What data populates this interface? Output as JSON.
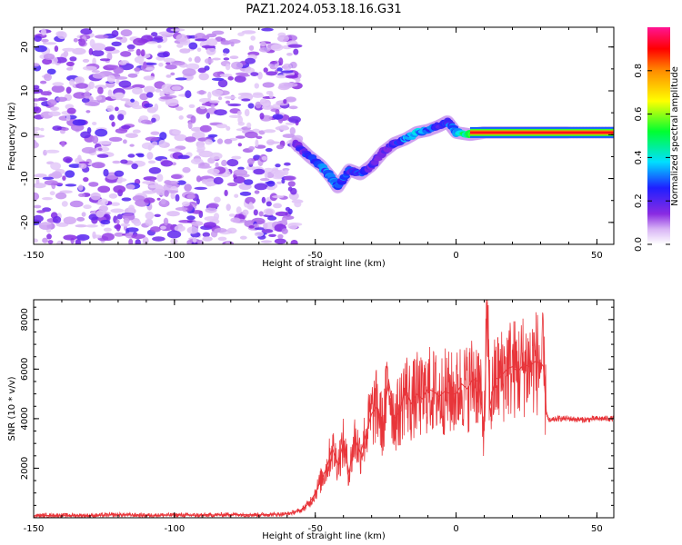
{
  "figure": {
    "title": "PAZ1.2024.053.18.16.G31"
  },
  "chart_data": [
    {
      "type": "heatmap",
      "title": "PAZ1.2024.053.18.16.G31",
      "xlabel": "Height of straight line (km)",
      "ylabel": "Frequency (Hz)",
      "xlim": [
        -150,
        56
      ],
      "ylim": [
        -25,
        24.5
      ],
      "x_ticks": [
        -150,
        -100,
        -50,
        0,
        50
      ],
      "y_ticks": [
        -20,
        -10,
        0,
        10,
        20
      ],
      "grid": false,
      "colorscale": "rainbow (white to violet, blue, cyan, green, yellow, orange, red, magenta)",
      "colorbar": {
        "label": "Normalized spectral amplitude",
        "range": [
          0,
          1
        ],
        "ticks": [
          0.0,
          0.2,
          0.4,
          0.6,
          0.8
        ]
      },
      "noise_region": {
        "x_range": [
          -150,
          -56
        ],
        "y_range": [
          -25,
          24
        ],
        "level": "low (0.05-0.25)"
      },
      "signal_track": {
        "x": [
          -57,
          -52,
          -48,
          -44,
          -42,
          -38,
          -34,
          -30,
          -26,
          -22,
          -18,
          -14,
          -10,
          -6,
          -3,
          0,
          5,
          10,
          20,
          30,
          40,
          56
        ],
        "frequency": [
          -2,
          -5,
          -7,
          -10,
          -12,
          -8,
          -9,
          -7,
          -4,
          -2,
          -1,
          0.5,
          1,
          2,
          3,
          0.5,
          0,
          0.5,
          0.5,
          0.5,
          0.5,
          0.5
        ],
        "amplitude": [
          0.2,
          0.35,
          0.4,
          0.45,
          0.45,
          0.35,
          0.35,
          0.3,
          0.2,
          0.3,
          0.45,
          0.5,
          0.4,
          0.35,
          0.35,
          0.5,
          0.75,
          0.75,
          0.8,
          0.85,
          0.9,
          0.9
        ]
      }
    },
    {
      "type": "line",
      "xlabel": "Height of straight line (km)",
      "ylabel": "SNR (10 * v/v)",
      "xlim": [
        -150,
        56
      ],
      "ylim": [
        0,
        8800
      ],
      "x_ticks": [
        -150,
        -100,
        -50,
        0,
        50
      ],
      "y_ticks": [
        2000,
        4000,
        6000,
        8000
      ],
      "grid": false,
      "color": "#e8353a",
      "series": [
        {
          "x": [
            -150,
            -140,
            -130,
            -120,
            -110,
            -100,
            -90,
            -80,
            -70,
            -60,
            -55,
            -52,
            -50,
            -48,
            -46,
            -44,
            -42,
            -40,
            -38,
            -36,
            -34,
            -32,
            -30,
            -28,
            -26,
            -24,
            -22,
            -20,
            -18,
            -16,
            -14,
            -12,
            -10,
            -8,
            -6,
            -4,
            -2,
            0,
            2,
            4,
            6,
            8,
            10,
            11,
            12,
            14,
            16,
            18,
            20,
            22,
            24,
            26,
            28,
            30,
            31,
            32,
            33,
            36,
            40,
            45,
            50,
            56
          ],
          "y": [
            80,
            100,
            90,
            120,
            100,
            110,
            100,
            130,
            120,
            150,
            300,
            600,
            1000,
            1500,
            2000,
            2800,
            2200,
            3000,
            1800,
            3200,
            2600,
            3400,
            4200,
            4500,
            3600,
            5600,
            4000,
            4300,
            5200,
            4600,
            5000,
            4800,
            5200,
            5100,
            4900,
            5100,
            5000,
            5000,
            5400,
            5200,
            5600,
            5500,
            3500,
            8700,
            4500,
            5600,
            5700,
            6000,
            6100,
            5900,
            6200,
            6100,
            6300,
            6250,
            6100,
            4300,
            3900,
            4000,
            4000,
            3950,
            4000,
            4000
          ]
        }
      ]
    }
  ]
}
